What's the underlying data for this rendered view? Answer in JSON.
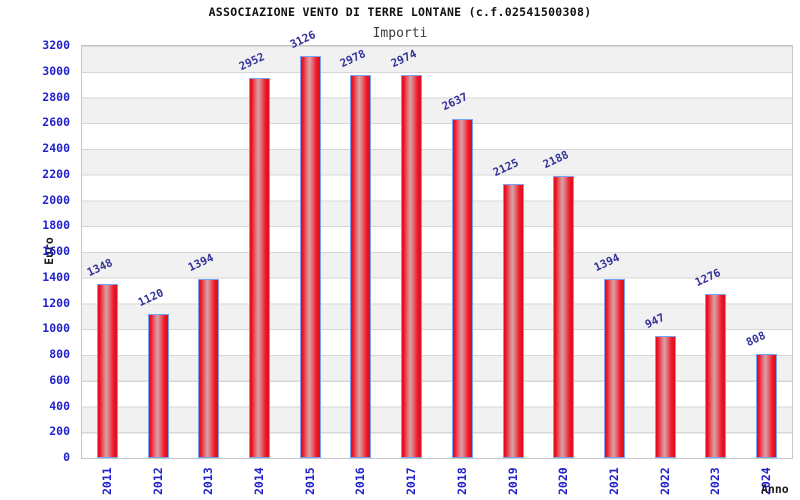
{
  "header": {
    "title": "ASSOCIAZIONE VENTO DI TERRE LONTANE (c.f.02541500308)",
    "subtitle": "Importi"
  },
  "axes": {
    "y_title": "Euro",
    "x_title": "Anno"
  },
  "chart_data": {
    "type": "bar",
    "title": "ASSOCIAZIONE VENTO DI TERRE LONTANE (c.f.02541500308)",
    "subtitle": "Importi",
    "xlabel": "Anno",
    "ylabel": "Euro",
    "categories": [
      "2011",
      "2012",
      "2013",
      "2014",
      "2015",
      "2016",
      "2017",
      "2018",
      "2019",
      "2020",
      "2021",
      "2022",
      "2023",
      "2024"
    ],
    "values": [
      1348,
      1120,
      1394,
      2952,
      3126,
      2978,
      2974,
      2637,
      2125,
      2188,
      1394,
      947,
      1276,
      808
    ],
    "ylim": [
      0,
      3200
    ],
    "ytick_step": 200,
    "grid": true,
    "legend": "none",
    "bar_labels_rotated": true,
    "colors": {
      "bar_edge": "#ee1626",
      "bar_center": "#d9a2a8",
      "bar_border": "#77a4f2",
      "value_label_text": "#333399",
      "axis_tick_text": "#2222cc",
      "band_gray": "#f1f1f1",
      "band_white": "#ffffff",
      "gridline": "#d6d6d6",
      "plot_frame": "#c6c6c6",
      "title_text": "#111111",
      "subtitle_text": "#3c3c3c",
      "axis_title_text": "#1a1a1a"
    }
  }
}
